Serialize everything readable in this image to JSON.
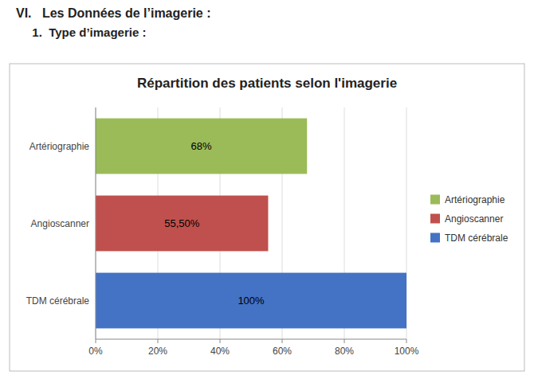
{
  "chart_data": {
    "type": "bar",
    "orientation": "horizontal",
    "title": "Répartition des patients selon l'imagerie",
    "annotations": [
      "VI.   Les Données de l’imagerie :",
      "  1.  Type d’imagerie :"
    ],
    "categories": [
      "TDM cérébrale",
      "Angioscanner",
      "Artériographie"
    ],
    "values": [
      100,
      55.5,
      68
    ],
    "value_labels": [
      "100%",
      "55,50%",
      "68%"
    ],
    "colors": [
      "#4472C4",
      "#C0504D",
      "#9BBB59"
    ],
    "xlim": [
      0,
      100
    ],
    "xticks": [
      {
        "value": 0,
        "label": "0%"
      },
      {
        "value": 20,
        "label": "20%"
      },
      {
        "value": 40,
        "label": "40%"
      },
      {
        "value": 60,
        "label": "60%"
      },
      {
        "value": 80,
        "label": "80%"
      },
      {
        "value": 100,
        "label": "100%"
      }
    ],
    "grid": true,
    "data_labels": true,
    "legend": "right"
  }
}
